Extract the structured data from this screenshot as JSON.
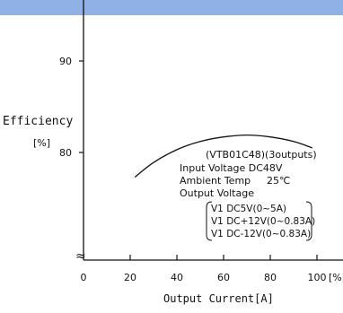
{
  "chart_data": {
    "type": "line",
    "title": "",
    "xlabel": "Output Current[A]",
    "ylabel": "Efficiency",
    "ylabel_unit": "[%]",
    "x_tick_labels": [
      "0",
      "20",
      "40",
      "60",
      "80",
      "100"
    ],
    "x_unit_suffix": "[%]",
    "y_tick_labels": [
      "80",
      "90"
    ],
    "xlim": [
      0,
      100
    ],
    "ylim": [
      80,
      90
    ],
    "axis_break": "≈",
    "grid": false,
    "series": [
      {
        "color": "#111111",
        "x": [
          22,
          30,
          40,
          50,
          60,
          70,
          80,
          90,
          98
        ],
        "y": [
          77.3,
          78.9,
          80.3,
          81.2,
          81.7,
          81.9,
          81.7,
          81.2,
          80.5
        ]
      }
    ],
    "annotations": {
      "model": "(VTB01C48)(3outputs)",
      "input_voltage": "Input Voltage DC48V",
      "ambient_temp": "Ambient Temp",
      "ambient_temp_value": "25℃",
      "output_voltage": "Output Voltage",
      "outputs": [
        "V1 DC5V(0~5A)",
        "V1 DC+12V(0~0.83A)",
        "V1 DC-12V(0~0.83A)"
      ]
    }
  }
}
